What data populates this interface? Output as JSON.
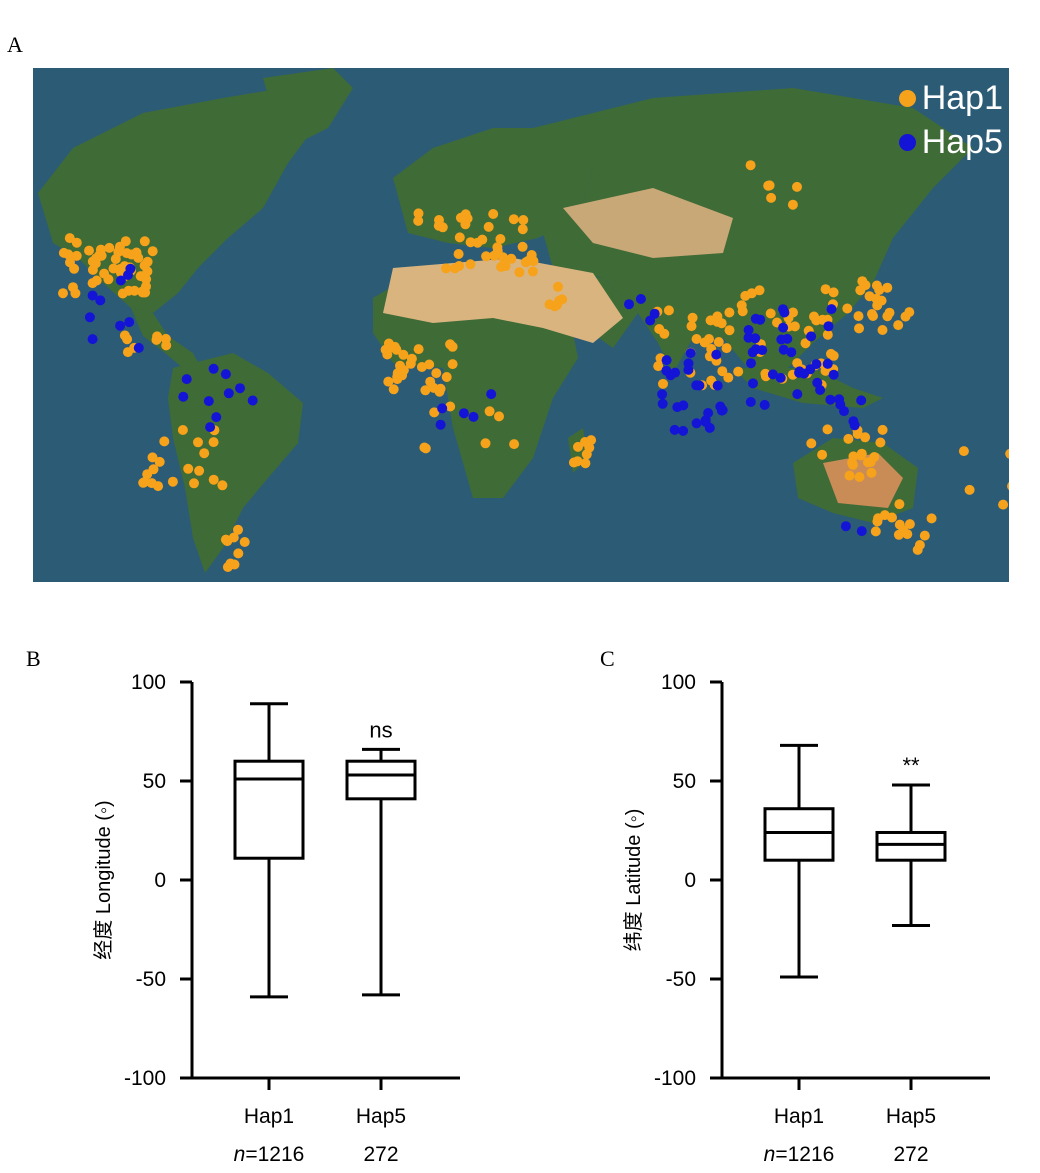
{
  "panels": {
    "a": "A",
    "b": "B",
    "c": "C"
  },
  "map": {
    "legend": [
      {
        "label": "Hap1",
        "color": "#f6a21b"
      },
      {
        "label": "Hap5",
        "color": "#1414d6"
      }
    ],
    "ocean_color": "#2c5b76",
    "land_color": "#3f6b37",
    "desert_color": "#d9b47f"
  },
  "chart_data": [
    {
      "type": "box",
      "panel": "B",
      "ylabel": "经度  Longitude (◦)",
      "ylim": [
        -100,
        100
      ],
      "yticks": [
        100,
        50,
        0,
        -50,
        -100
      ],
      "categories": [
        "Hap1",
        "Hap5"
      ],
      "n_prefix": "n",
      "n_labels": [
        "=1216",
        "272"
      ],
      "annotation": "ns",
      "series": [
        {
          "name": "Hap1",
          "min": -59,
          "q1": 11,
          "median": 51,
          "q3": 60,
          "max": 89
        },
        {
          "name": "Hap5",
          "min": -58,
          "q1": 41,
          "median": 53,
          "q3": 60,
          "max": 66
        }
      ]
    },
    {
      "type": "box",
      "panel": "C",
      "ylabel": "纬度  Latitude (◦)",
      "ylim": [
        -100,
        100
      ],
      "yticks": [
        100,
        50,
        0,
        -50,
        -100
      ],
      "categories": [
        "Hap1",
        "Hap5"
      ],
      "n_prefix": "n",
      "n_labels": [
        "=1216",
        "272"
      ],
      "annotation": "**",
      "series": [
        {
          "name": "Hap1",
          "min": -49,
          "q1": 10,
          "median": 24,
          "q3": 36,
          "max": 68
        },
        {
          "name": "Hap5",
          "min": -23,
          "q1": 10,
          "median": 18,
          "q3": 24,
          "max": 48
        }
      ]
    }
  ]
}
